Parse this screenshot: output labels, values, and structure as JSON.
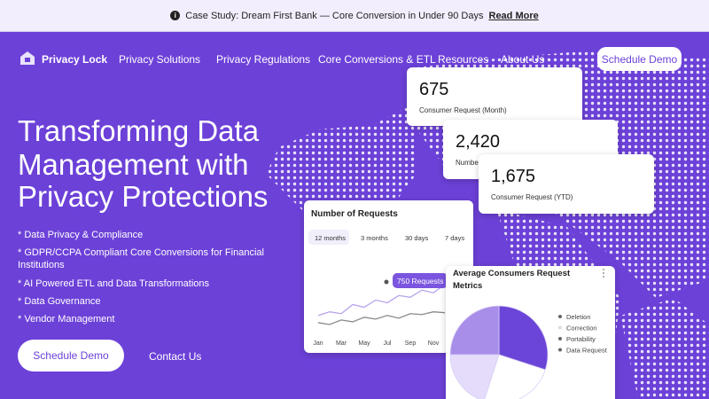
{
  "banner": {
    "text": "Case Study: Dream First Bank — Core Conversion in Under 90 Days",
    "link": "Read More"
  },
  "nav": {
    "brand": "Privacy Lock",
    "links": [
      "Privacy Solutions",
      "Privacy Regulations",
      "Core Conversions & ETL",
      "Resources",
      "About Us"
    ],
    "cta": "Schedule Demo"
  },
  "hero": {
    "title_lines": [
      "Transforming Data",
      "Management with",
      "Privacy Protections"
    ],
    "bullets": [
      "* Data Privacy & Compliance",
      "* GDPR/CCPA Compliant Core Conversions for Financial Institutions",
      "* AI Powered ETL and Data Transformations",
      "* Data Governance",
      "* Vendor Management"
    ],
    "primary_button": "Schedule Demo",
    "secondary_link": "Contact Us"
  },
  "stats": [
    {
      "value": "675",
      "label": "Consumer Request (Month)"
    },
    {
      "value": "2,420",
      "label": "Number of Requests"
    },
    {
      "value": "1,675",
      "label": "Consumer Request (YTD)"
    }
  ],
  "requests_chart": {
    "type": "line",
    "title": "Number of Requests",
    "ranges": [
      "12 months",
      "3 months",
      "30 days",
      "7 days"
    ],
    "tooltip": "750 Requests",
    "categories": [
      "Jan",
      null,
      "Mar",
      null,
      "May",
      null,
      "Jul",
      null,
      "Sep",
      null,
      "Nov",
      null
    ],
    "series": [
      {
        "color": "#b7a3ec",
        "values": [
          38,
          42,
          40,
          50,
          47,
          55,
          52,
          60,
          58,
          66,
          63,
          72
        ]
      },
      {
        "color": "#8a8a8a",
        "values": [
          30,
          28,
          33,
          31,
          36,
          34,
          38,
          35,
          40,
          39,
          42,
          41
        ]
      }
    ]
  },
  "metrics_chart": {
    "type": "pie",
    "title": "Average Consumers Request Metrics",
    "categories": [
      "Deletion",
      "Correction",
      "Portability",
      "Data Request"
    ],
    "values": [
      30,
      25,
      20,
      25
    ],
    "colors": [
      "#6b45d8",
      "#ffffff",
      "#e4dcfa",
      "#a98ee9"
    ]
  }
}
